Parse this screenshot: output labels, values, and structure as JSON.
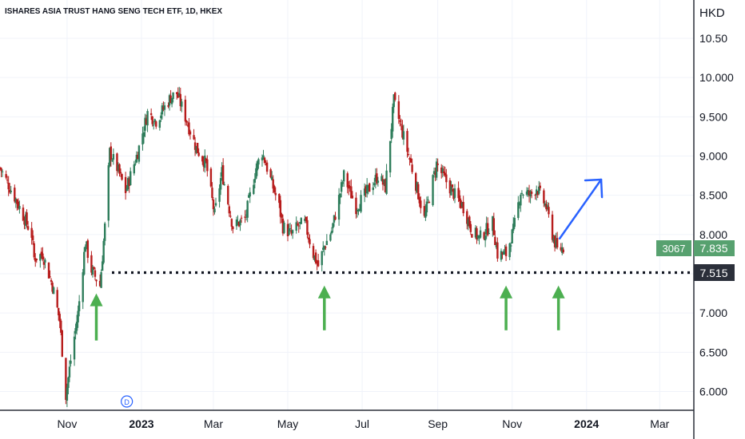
{
  "title": "ISHARES ASIA TRUST HANG SENG TECH ETF, 1D, HKEX",
  "currency": "HKD",
  "chart_data": {
    "type": "candlestick",
    "title": "ISHARES ASIA TRUST HANG SENG TECH ETF, 1D, HKEX",
    "ylabel": "HKD",
    "ylim": [
      5.8,
      10.6
    ],
    "y_ticks": [
      "10.50",
      "10.000",
      "9.500",
      "9.000",
      "8.500",
      "8.000",
      "7.500",
      "7.000",
      "6.500",
      "6.000"
    ],
    "x_ticks": [
      {
        "label": "Nov",
        "date": "2022-11-01",
        "bold": false
      },
      {
        "label": "2023",
        "date": "2023-01-01",
        "bold": true
      },
      {
        "label": "Mar",
        "date": "2023-03-01",
        "bold": false
      },
      {
        "label": "May",
        "date": "2023-05-01",
        "bold": false
      },
      {
        "label": "Jul",
        "date": "2023-07-01",
        "bold": false
      },
      {
        "label": "Sep",
        "date": "2023-09-01",
        "bold": false
      },
      {
        "label": "Nov",
        "date": "2023-11-01",
        "bold": false
      },
      {
        "label": "2024",
        "date": "2024-01-01",
        "bold": true
      },
      {
        "label": "Mar",
        "date": "2024-03-01",
        "bold": false
      }
    ],
    "x_range": [
      "2022-09-07",
      "2024-03-29"
    ],
    "path": [
      [
        "2022-09-07",
        8.85
      ],
      [
        "2022-09-20",
        8.45
      ],
      [
        "2022-10-03",
        8.0
      ],
      [
        "2022-10-05",
        7.7
      ],
      [
        "2022-10-12",
        7.75
      ],
      [
        "2022-10-20",
        7.35
      ],
      [
        "2022-10-26",
        6.9
      ],
      [
        "2022-10-31",
        5.95
      ],
      [
        "2022-11-04",
        6.4
      ],
      [
        "2022-11-10",
        7.0
      ],
      [
        "2022-11-16",
        7.9
      ],
      [
        "2022-11-21",
        7.55
      ],
      [
        "2022-11-28",
        7.35
      ],
      [
        "2022-12-02",
        8.1
      ],
      [
        "2022-12-06",
        9.05
      ],
      [
        "2022-12-12",
        8.85
      ],
      [
        "2022-12-19",
        8.55
      ],
      [
        "2022-12-29",
        9.05
      ],
      [
        "2023-01-06",
        9.55
      ],
      [
        "2023-01-13",
        9.45
      ],
      [
        "2023-01-25",
        9.75
      ],
      [
        "2023-01-30",
        9.8
      ],
      [
        "2023-02-06",
        9.5
      ],
      [
        "2023-02-15",
        9.1
      ],
      [
        "2023-02-23",
        8.9
      ],
      [
        "2023-03-02",
        8.25
      ],
      [
        "2023-03-08",
        8.8
      ],
      [
        "2023-03-17",
        8.1
      ],
      [
        "2023-03-27",
        8.2
      ],
      [
        "2023-04-05",
        8.85
      ],
      [
        "2023-04-10",
        9.05
      ],
      [
        "2023-04-14",
        8.85
      ],
      [
        "2023-04-24",
        8.35
      ],
      [
        "2023-04-27",
        8.1
      ],
      [
        "2023-05-04",
        8.0
      ],
      [
        "2023-05-09",
        8.1
      ],
      [
        "2023-05-15",
        8.15
      ],
      [
        "2023-05-22",
        7.75
      ],
      [
        "2023-05-26",
        7.6
      ],
      [
        "2023-05-31",
        7.85
      ],
      [
        "2023-06-06",
        8.05
      ],
      [
        "2023-06-14",
        8.6
      ],
      [
        "2023-06-16",
        8.75
      ],
      [
        "2023-06-26",
        8.35
      ],
      [
        "2023-07-03",
        8.5
      ],
      [
        "2023-07-14",
        8.75
      ],
      [
        "2023-07-20",
        8.6
      ],
      [
        "2023-07-27",
        9.7
      ],
      [
        "2023-08-03",
        9.3
      ],
      [
        "2023-08-10",
        8.9
      ],
      [
        "2023-08-21",
        8.2
      ],
      [
        "2023-08-31",
        8.9
      ],
      [
        "2023-09-07",
        8.7
      ],
      [
        "2023-09-15",
        8.5
      ],
      [
        "2023-09-22",
        8.35
      ],
      [
        "2023-09-29",
        8.05
      ],
      [
        "2023-10-05",
        7.95
      ],
      [
        "2023-10-16",
        8.15
      ],
      [
        "2023-10-20",
        7.75
      ],
      [
        "2023-10-27",
        7.75
      ],
      [
        "2023-11-02",
        8.05
      ],
      [
        "2023-11-08",
        8.55
      ],
      [
        "2023-11-16",
        8.5
      ],
      [
        "2023-11-21",
        8.6
      ],
      [
        "2023-11-29",
        8.35
      ],
      [
        "2023-12-04",
        8.0
      ],
      [
        "2023-12-08",
        7.8
      ],
      [
        "2023-12-13",
        7.835
      ]
    ],
    "candle_start": "2022-09-07",
    "candle_end": "2023-12-13",
    "horizontal_line": {
      "value": 7.515,
      "style": "dotted"
    },
    "last_price": "7.835",
    "last_price_counter": "3067",
    "support_line_label": "7.515",
    "arrows": [
      {
        "direction": "up",
        "color": "#4caf50",
        "date": "2022-11-25",
        "from": 6.65,
        "to": 7.25
      },
      {
        "direction": "up",
        "color": "#4caf50",
        "date": "2023-05-31",
        "from": 6.78,
        "to": 7.35
      },
      {
        "direction": "up",
        "color": "#4caf50",
        "date": "2023-10-27",
        "from": 6.78,
        "to": 7.35
      },
      {
        "direction": "up",
        "color": "#4caf50",
        "date": "2023-12-09",
        "from": 6.78,
        "to": 7.35
      },
      {
        "direction": "up-right",
        "color": "#2962ff",
        "date_from": "2023-12-10",
        "from": 7.95,
        "date_to": "2024-01-13",
        "to": 8.7
      }
    ],
    "event_marker": {
      "label": "D",
      "date": "2022-12-20"
    },
    "colors": {
      "up": "#2e7d5b",
      "down": "#b71c1c",
      "price_tag": "#57a16f",
      "support_tag": "#2b2f3a",
      "blue_arrow": "#2962ff",
      "green_arrow": "#4caf50"
    }
  }
}
